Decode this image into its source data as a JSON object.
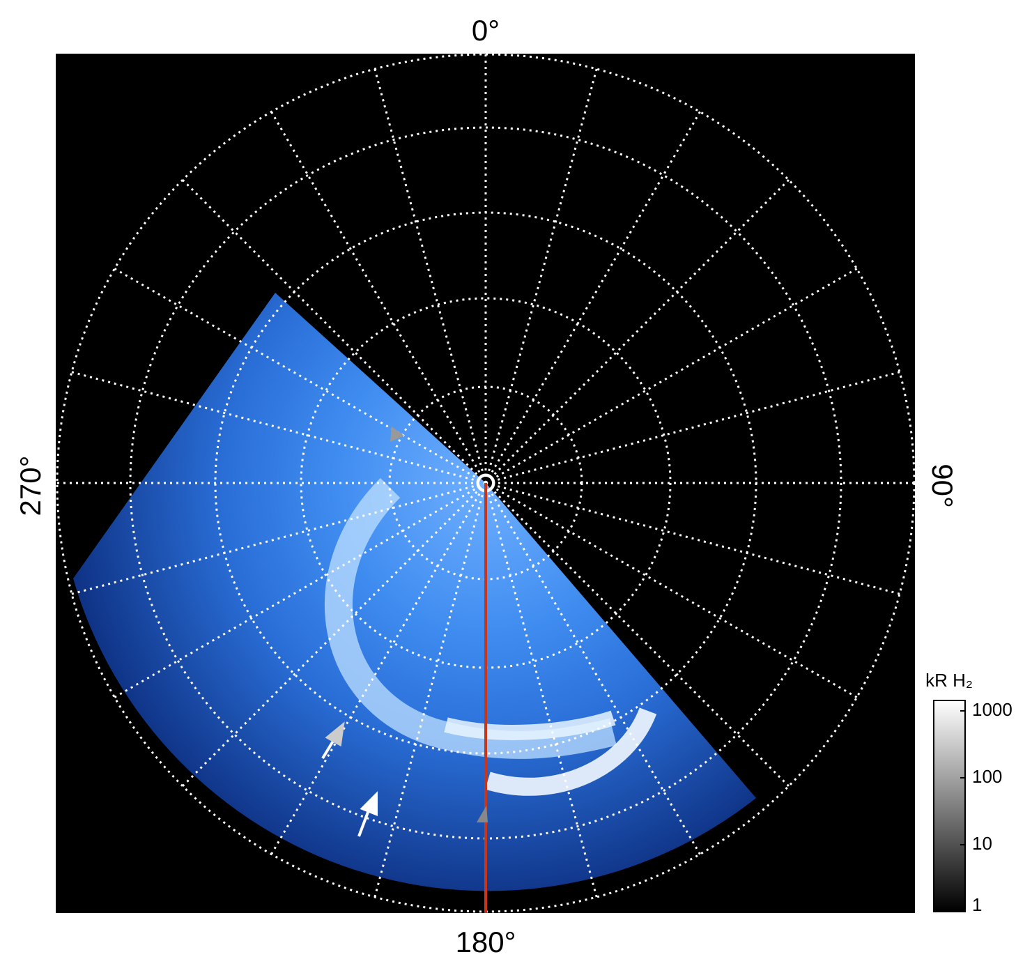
{
  "direction_labels": {
    "top": "0°",
    "right": "90°",
    "bottom": "180°",
    "left": "270°"
  },
  "colorbar": {
    "title": "kR H₂",
    "scale": "log",
    "range": [
      1,
      1430
    ],
    "ticks": [
      1,
      10,
      100,
      1000
    ]
  }
}
